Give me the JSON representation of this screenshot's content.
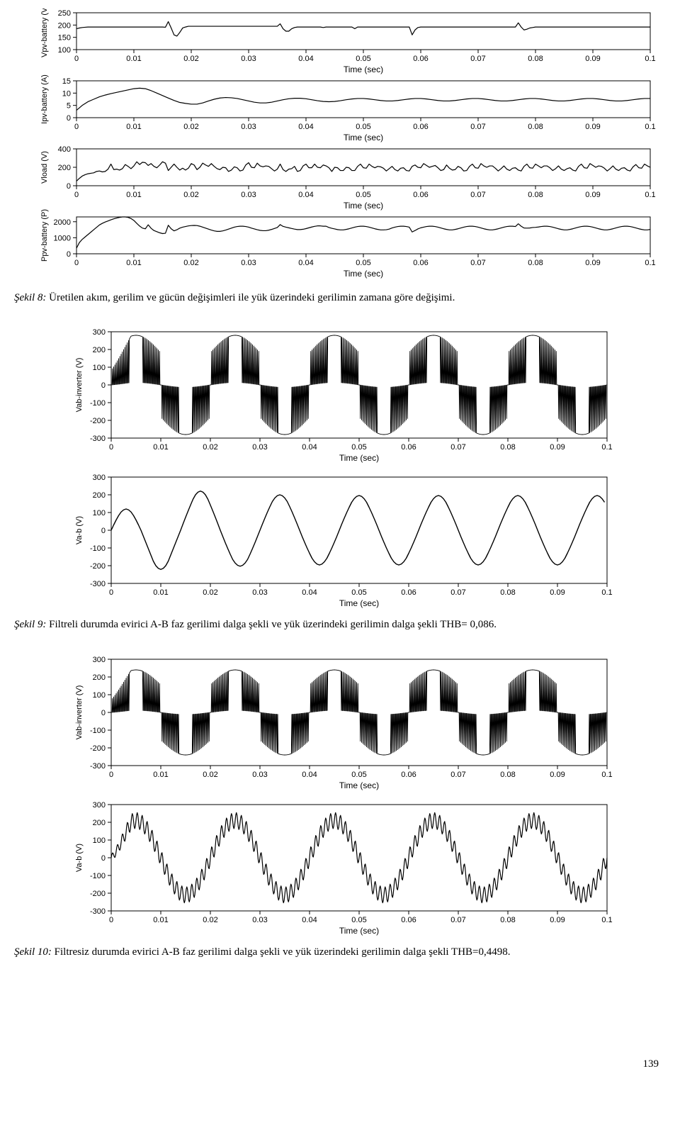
{
  "page_number": "139",
  "colors": {
    "bg": "#ffffff",
    "axis": "#000000",
    "line": "#000000",
    "text": "#000000"
  },
  "fonts": {
    "caption_family": "Times New Roman",
    "chart_family": "Arial",
    "tick_size_pt": 11,
    "ylabel_size_pt": 11,
    "xlabel_size_pt": 12
  },
  "figure8": {
    "caption_label": "Şekil 8:",
    "caption_text": " Üretilen akım, gerilim ve gücün değişimleri ile yük üzerindeki gerilimin zamana göre değişimi.",
    "xlabel": "Time (sec)",
    "xlim": [
      0,
      0.1
    ],
    "xticks": [
      0,
      0.01,
      0.02,
      0.03,
      0.04,
      0.05,
      0.06,
      0.07,
      0.08,
      0.09,
      0.1
    ],
    "panels": [
      {
        "ylabel": "Vpv-battery (V)",
        "ylim": [
          100,
          250
        ],
        "yticks": [
          100,
          150,
          200,
          250
        ],
        "type": "line",
        "line_width": 1.2,
        "data_x_step": 0.0005,
        "data_y": [
          185,
          188,
          190,
          191,
          192,
          192,
          192,
          192,
          192,
          192,
          192,
          192,
          192,
          192,
          192,
          192,
          192,
          192,
          192,
          192,
          192,
          192,
          192,
          192,
          192,
          192,
          192,
          192,
          192,
          192,
          192,
          191,
          214,
          188,
          160,
          155,
          170,
          188,
          192,
          195,
          195,
          195,
          195,
          195,
          195,
          195,
          195,
          195,
          195,
          195,
          195,
          195,
          195,
          195,
          195,
          195,
          195,
          195,
          195,
          195,
          195,
          195,
          195,
          195,
          195,
          195,
          195,
          195,
          195,
          195,
          195,
          205,
          185,
          175,
          175,
          185,
          190,
          192,
          192,
          192,
          192,
          192,
          192,
          192,
          192,
          192,
          190,
          192,
          192,
          192,
          192,
          192,
          192,
          192,
          192,
          192,
          192,
          185,
          192,
          192,
          192,
          192,
          192,
          192,
          192,
          192,
          192,
          192,
          192,
          192,
          192,
          192,
          192,
          192,
          192,
          192,
          192,
          160,
          180,
          190,
          192,
          192,
          192,
          192,
          192,
          192,
          192,
          192,
          192,
          192,
          192,
          192,
          192,
          192,
          192,
          192,
          192,
          192,
          192,
          192,
          192,
          192,
          192,
          192,
          192,
          192,
          192,
          192,
          192,
          192,
          192,
          192,
          192,
          192,
          209,
          192,
          180,
          183,
          188,
          190,
          192,
          192,
          192,
          192,
          192,
          192,
          192,
          192,
          192,
          192,
          192,
          192,
          192,
          192,
          192,
          192,
          192,
          192,
          192,
          192,
          192,
          192,
          192,
          192,
          192,
          192,
          192,
          192,
          192,
          192,
          192,
          192,
          192,
          192,
          192,
          192,
          192,
          192,
          192,
          192,
          192
        ]
      },
      {
        "ylabel": "Ipv-battery (A)",
        "ylim": [
          0,
          15
        ],
        "yticks": [
          0,
          5,
          10,
          15
        ],
        "type": "line",
        "line_width": 1.2,
        "data_x_step": 0.001,
        "data_y": [
          3,
          5,
          6.5,
          7.5,
          8.5,
          9.2,
          9.8,
          10.3,
          10.8,
          11.3,
          11.8,
          12,
          11.8,
          11,
          10,
          9,
          8,
          7,
          6.2,
          5.8,
          5.5,
          5.5,
          6,
          6.8,
          7.5,
          8,
          8.2,
          8.1,
          7.8,
          7.3,
          6.8,
          6.3,
          6,
          6,
          6.3,
          6.8,
          7.3,
          7.7,
          7.9,
          7.9,
          7.7,
          7.3,
          6.9,
          6.6,
          6.5,
          6.6,
          6.9,
          7.3,
          7.6,
          7.8,
          7.8,
          7.6,
          7.3,
          7,
          6.8,
          6.8,
          7,
          7.3,
          7.6,
          7.8,
          7.8,
          7.6,
          7.3,
          7,
          6.8,
          6.8,
          7,
          7.3,
          7.6,
          7.8,
          7.8,
          7.6,
          7.3,
          7,
          6.8,
          6.8,
          7,
          7.3,
          7.6,
          7.8,
          7.8,
          7.6,
          7.3,
          7,
          6.8,
          6.8,
          7,
          7.3,
          7.6,
          7.8,
          7.8,
          7.6,
          7.3,
          7,
          6.8,
          6.8,
          7,
          7.3,
          7.6,
          7.8,
          7.8
        ]
      },
      {
        "ylabel": "Vload (V)",
        "ylim": [
          0,
          400
        ],
        "yticks": [
          0,
          200,
          400
        ],
        "type": "line",
        "line_width": 1.2,
        "data_x_step": 0.0005,
        "data_y": [
          50,
          80,
          105,
          120,
          130,
          135,
          140,
          155,
          160,
          150,
          155,
          180,
          235,
          175,
          180,
          170,
          185,
          230,
          210,
          185,
          215,
          260,
          230,
          255,
          250,
          220,
          240,
          210,
          195,
          225,
          260,
          245,
          165,
          200,
          235,
          200,
          170,
          190,
          170,
          190,
          240,
          225,
          175,
          200,
          245,
          225,
          210,
          240,
          210,
          185,
          175,
          200,
          195,
          155,
          170,
          205,
          195,
          160,
          170,
          225,
          250,
          200,
          195,
          245,
          215,
          205,
          215,
          210,
          185,
          160,
          180,
          235,
          175,
          155,
          180,
          185,
          210,
          155,
          165,
          215,
          235,
          195,
          195,
          235,
          200,
          195,
          225,
          215,
          195,
          155,
          200,
          195,
          165,
          165,
          200,
          195,
          165,
          165,
          210,
          235,
          195,
          190,
          235,
          210,
          195,
          210,
          205,
          190,
          160,
          185,
          210,
          175,
          160,
          190,
          195,
          165,
          160,
          210,
          225,
          200,
          195,
          240,
          220,
          200,
          210,
          220,
          195,
          165,
          175,
          225,
          190,
          170,
          175,
          210,
          195,
          160,
          165,
          210,
          235,
          195,
          190,
          240,
          215,
          200,
          215,
          215,
          190,
          160,
          185,
          215,
          180,
          165,
          190,
          195,
          170,
          160,
          210,
          235,
          195,
          190,
          235,
          215,
          195,
          215,
          215,
          195,
          165,
          185,
          215,
          180,
          165,
          185,
          195,
          170,
          160,
          210,
          235,
          195,
          190,
          240,
          220,
          200,
          215,
          210,
          190,
          160,
          185,
          215,
          180,
          165,
          190,
          195,
          170,
          160,
          205,
          230,
          195,
          190,
          235,
          215,
          200
        ]
      },
      {
        "ylabel": "Ppv-battery (P)",
        "ylim": [
          0,
          2300
        ],
        "yticks": [
          0,
          1000,
          2000
        ],
        "type": "line",
        "line_width": 1.2,
        "data_x_step": 0.0005,
        "data_y": [
          350,
          700,
          900,
          1050,
          1200,
          1350,
          1500,
          1650,
          1800,
          1900,
          1980,
          2050,
          2120,
          2180,
          2230,
          2270,
          2300,
          2300,
          2270,
          2200,
          2080,
          1900,
          1730,
          1600,
          1560,
          1810,
          1590,
          1450,
          1380,
          1310,
          1260,
          1280,
          1780,
          1560,
          1430,
          1500,
          1600,
          1660,
          1700,
          1740,
          1760,
          1770,
          1760,
          1720,
          1660,
          1600,
          1540,
          1480,
          1430,
          1400,
          1400,
          1430,
          1480,
          1540,
          1600,
          1660,
          1700,
          1720,
          1720,
          1700,
          1660,
          1600,
          1550,
          1500,
          1460,
          1440,
          1440,
          1470,
          1520,
          1580,
          1640,
          1820,
          1710,
          1660,
          1620,
          1580,
          1540,
          1510,
          1510,
          1530,
          1570,
          1620,
          1670,
          1710,
          1740,
          1740,
          1720,
          1720,
          1640,
          1590,
          1550,
          1510,
          1490,
          1490,
          1520,
          1560,
          1610,
          1660,
          1700,
          1720,
          1720,
          1700,
          1660,
          1610,
          1560,
          1520,
          1490,
          1490,
          1500,
          1540,
          1610,
          1660,
          1700,
          1720,
          1720,
          1700,
          1660,
          1360,
          1450,
          1550,
          1620,
          1660,
          1700,
          1720,
          1720,
          1700,
          1660,
          1610,
          1560,
          1520,
          1490,
          1490,
          1520,
          1560,
          1610,
          1660,
          1700,
          1720,
          1720,
          1700,
          1660,
          1610,
          1560,
          1520,
          1490,
          1490,
          1520,
          1560,
          1610,
          1660,
          1700,
          1720,
          1720,
          1700,
          1870,
          1720,
          1610,
          1600,
          1610,
          1640,
          1650,
          1670,
          1700,
          1720,
          1720,
          1700,
          1660,
          1610,
          1560,
          1520,
          1490,
          1490,
          1520,
          1560,
          1610,
          1660,
          1700,
          1720,
          1720,
          1700,
          1660,
          1610,
          1560,
          1520,
          1490,
          1490,
          1520,
          1560,
          1610,
          1660,
          1700,
          1720,
          1720,
          1700,
          1660,
          1610,
          1560,
          1520,
          1490,
          1490,
          1520
        ]
      }
    ]
  },
  "figure9": {
    "caption_label": "Şekil 9:",
    "caption_text": " Filtreli durumda evirici A-B faz gerilimi dalga şekli ve yük üzerindeki gerilimin dalga şekli THB= 0,086.",
    "xlabel": "Time (sec)",
    "xlim": [
      0,
      0.1
    ],
    "xticks": [
      0,
      0.01,
      0.02,
      0.03,
      0.04,
      0.05,
      0.06,
      0.07,
      0.08,
      0.09,
      0.1
    ],
    "panels": [
      {
        "ylabel": "Vab-inverter (V)",
        "ylim": [
          -300,
          300
        ],
        "yticks": [
          -300,
          -200,
          -100,
          0,
          100,
          200,
          300
        ],
        "type": "pwm",
        "line_width": 0.9,
        "carrier_freq_hz": 2000,
        "fund_freq_hz": 50,
        "amplitude_env": 280,
        "initial_ramp_end": 0.004,
        "initial_ramp_scale": 0.45
      },
      {
        "ylabel": "Va-b (V)",
        "ylim": [
          -300,
          300
        ],
        "yticks": [
          -300,
          -200,
          -100,
          0,
          100,
          200,
          300
        ],
        "type": "line",
        "line_width": 1.4,
        "data_x_step": 0.0005,
        "data_y": [
          0,
          30,
          58,
          83,
          103,
          115,
          120,
          115,
          103,
          83,
          58,
          30,
          0,
          -35,
          -70,
          -105,
          -140,
          -175,
          -200,
          -215,
          -221,
          -215,
          -200,
          -175,
          -140,
          -105,
          -70,
          -35,
          0,
          37,
          73,
          108,
          142,
          175,
          200,
          215,
          221,
          215,
          200,
          175,
          142,
          108,
          73,
          37,
          0,
          -35,
          -70,
          -103,
          -135,
          -165,
          -185,
          -198,
          -203,
          -198,
          -185,
          -165,
          -135,
          -103,
          -70,
          -35,
          0,
          35,
          69,
          102,
          133,
          162,
          182,
          195,
          200,
          195,
          182,
          162,
          133,
          102,
          69,
          35,
          0,
          -35,
          -68,
          -100,
          -130,
          -158,
          -178,
          -191,
          -196,
          -191,
          -178,
          -158,
          -130,
          -100,
          -68,
          -35,
          0,
          35,
          68,
          100,
          130,
          158,
          178,
          191,
          196,
          191,
          178,
          158,
          130,
          100,
          68,
          35,
          0,
          -35,
          -68,
          -100,
          -130,
          -158,
          -178,
          -191,
          -196,
          -191,
          -178,
          -158,
          -130,
          -100,
          -68,
          -35,
          0,
          35,
          68,
          100,
          130,
          158,
          178,
          191,
          196,
          191,
          178,
          158,
          130,
          100,
          68,
          35,
          0,
          -35,
          -68,
          -100,
          -130,
          -158,
          -178,
          -191,
          -196,
          -191,
          -178,
          -158,
          -130,
          -100,
          -68,
          -35,
          0,
          35,
          68,
          100,
          130,
          158,
          178,
          191,
          196,
          191,
          178,
          158,
          130,
          100,
          68,
          35,
          0,
          -35,
          -68,
          -100,
          -130,
          -158,
          -178,
          -191,
          -196,
          -191,
          -178,
          -158,
          -130,
          -100,
          -68,
          -35,
          0,
          35,
          68,
          100,
          130,
          158,
          178,
          191,
          196,
          191,
          178,
          158
        ]
      }
    ]
  },
  "figure10": {
    "caption_label": "Şekil 10:",
    "caption_text": " Filtresiz durumda evirici A-B faz gerilimi dalga şekli ve yük üzerindeki gerilimin dalga şekli THB=0,4498.",
    "xlabel": "Time (sec)",
    "xlim": [
      0,
      0.1
    ],
    "xticks": [
      0,
      0.01,
      0.02,
      0.03,
      0.04,
      0.05,
      0.06,
      0.07,
      0.08,
      0.09,
      0.1
    ],
    "panels": [
      {
        "ylabel": "Vab-inverter (V)",
        "ylim": [
          -300,
          300
        ],
        "yticks": [
          -300,
          -200,
          -100,
          0,
          100,
          200,
          300
        ],
        "type": "pwm",
        "line_width": 0.9,
        "carrier_freq_hz": 2000,
        "fund_freq_hz": 50,
        "amplitude_env": 240,
        "initial_ramp_end": 0.004,
        "initial_ramp_scale": 0.45
      },
      {
        "ylabel": "Va-b (V)",
        "ylim": [
          -300,
          300
        ],
        "yticks": [
          -300,
          -200,
          -100,
          0,
          100,
          200,
          300
        ],
        "type": "noisy_sine",
        "line_width": 1.2,
        "fund_freq_hz": 50,
        "amplitude": 210,
        "ripple_freq_hz": 1000,
        "ripple_amp": 45,
        "initial_ramp_end": 0.004,
        "initial_ramp_scale": 0.4,
        "samples": 800
      }
    ]
  }
}
